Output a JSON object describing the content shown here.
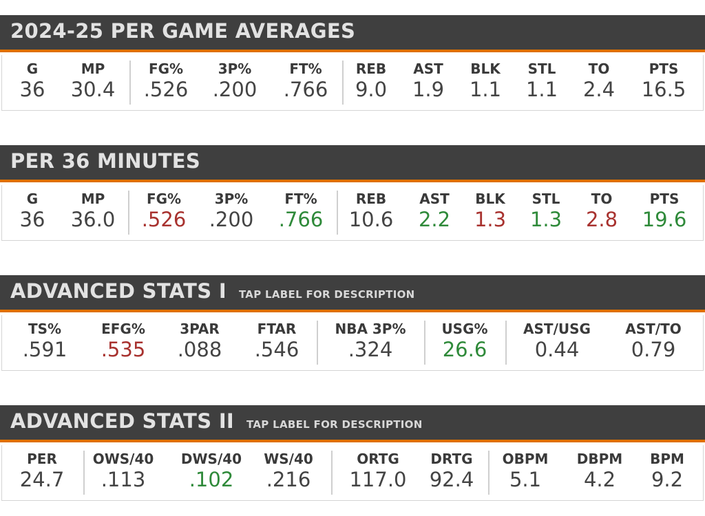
{
  "sections": [
    {
      "title": "2024-25 PER GAME AVERAGES",
      "subtitle": "",
      "stats": [
        {
          "label": "G",
          "value": "36"
        },
        {
          "label": "MP",
          "value": "30.4"
        },
        {
          "label": "FG%",
          "value": ".526"
        },
        {
          "label": "3P%",
          "value": ".200"
        },
        {
          "label": "FT%",
          "value": ".766"
        },
        {
          "label": "REB",
          "value": "9.0"
        },
        {
          "label": "AST",
          "value": "1.9"
        },
        {
          "label": "BLK",
          "value": "1.1"
        },
        {
          "label": "STL",
          "value": "1.1"
        },
        {
          "label": "TO",
          "value": "2.4"
        },
        {
          "label": "PTS",
          "value": "16.5"
        }
      ]
    },
    {
      "title": "PER 36 MINUTES",
      "subtitle": "",
      "stats": [
        {
          "label": "G",
          "value": "36"
        },
        {
          "label": "MP",
          "value": "36.0"
        },
        {
          "label": "FG%",
          "value": ".526"
        },
        {
          "label": "3P%",
          "value": ".200"
        },
        {
          "label": "FT%",
          "value": ".766"
        },
        {
          "label": "REB",
          "value": "10.6"
        },
        {
          "label": "AST",
          "value": "2.2"
        },
        {
          "label": "BLK",
          "value": "1.3"
        },
        {
          "label": "STL",
          "value": "1.3"
        },
        {
          "label": "TO",
          "value": "2.8"
        },
        {
          "label": "PTS",
          "value": "19.6"
        }
      ]
    },
    {
      "title": "ADVANCED STATS I",
      "subtitle": "TAP LABEL FOR DESCRIPTION",
      "stats": [
        {
          "label": "TS%",
          "value": ".591"
        },
        {
          "label": "EFG%",
          "value": ".535"
        },
        {
          "label": "3PAR",
          "value": ".088"
        },
        {
          "label": "FTAR",
          "value": ".546"
        },
        {
          "label": "NBA 3P%",
          "value": ".324"
        },
        {
          "label": "USG%",
          "value": "26.6"
        },
        {
          "label": "AST/USG",
          "value": "0.44"
        },
        {
          "label": "AST/TO",
          "value": "0.79"
        }
      ]
    },
    {
      "title": "ADVANCED STATS II",
      "subtitle": "TAP LABEL FOR DESCRIPTION",
      "stats": [
        {
          "label": "PER",
          "value": "24.7"
        },
        {
          "label": "OWS/40",
          "value": ".113"
        },
        {
          "label": "DWS/40",
          "value": ".102"
        },
        {
          "label": "WS/40",
          "value": ".216"
        },
        {
          "label": "ORTG",
          "value": "117.0"
        },
        {
          "label": "DRTG",
          "value": "92.4"
        },
        {
          "label": "OBPM",
          "value": "5.1"
        },
        {
          "label": "DBPM",
          "value": "4.2"
        },
        {
          "label": "BPM",
          "value": "9.2"
        }
      ]
    }
  ],
  "colors": {
    "header": "#3f3f3f",
    "accent": "#e07000",
    "negative": "#a8322f",
    "positive": "#2f8a3a"
  }
}
